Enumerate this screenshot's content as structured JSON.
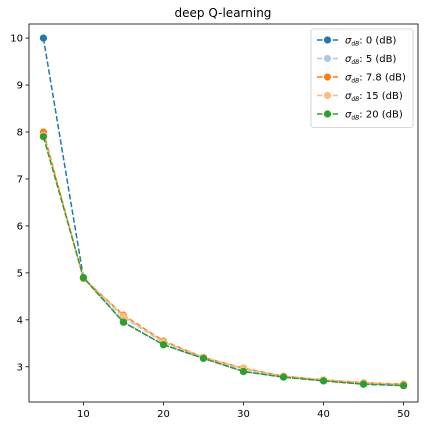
{
  "chart_data": {
    "type": "line",
    "title": "deep Q-learning",
    "xlabel": "",
    "ylabel": "",
    "xlim": [
      3.2,
      51.8
    ],
    "ylim": [
      2.25,
      10.3
    ],
    "xticks": [
      10,
      20,
      30,
      40,
      50
    ],
    "yticks": [
      3,
      4,
      5,
      6,
      7,
      8,
      9,
      10
    ],
    "grid": false,
    "legend_position": "top-right",
    "x": [
      5,
      10,
      15,
      20,
      25,
      30,
      35,
      40,
      45,
      50
    ],
    "series": [
      {
        "name": "0 (dB)",
        "symbol": "σ",
        "subscript": "dB",
        "color": "#1f77b4",
        "values": [
          10.0,
          4.9,
          3.95,
          3.47,
          3.18,
          2.9,
          2.78,
          2.7,
          2.63,
          2.6
        ]
      },
      {
        "name": "5 (dB)",
        "symbol": "σ",
        "subscript": "dB",
        "color": "#aec7e8",
        "values": [
          7.95,
          4.9,
          4.05,
          3.52,
          3.2,
          2.95,
          2.8,
          2.72,
          2.66,
          2.62
        ]
      },
      {
        "name": "7.8 (dB)",
        "symbol": "σ",
        "subscript": "dB",
        "color": "#ff7f0e",
        "values": [
          8.0,
          4.88,
          4.1,
          3.55,
          3.2,
          2.97,
          2.8,
          2.72,
          2.66,
          2.63
        ]
      },
      {
        "name": "15 (dB)",
        "symbol": "σ",
        "subscript": "dB",
        "color": "#ffbb78",
        "values": [
          7.93,
          4.9,
          4.08,
          3.53,
          3.2,
          2.96,
          2.8,
          2.72,
          2.66,
          2.62
        ]
      },
      {
        "name": "20 (dB)",
        "symbol": "σ",
        "subscript": "dB",
        "color": "#2ca02c",
        "values": [
          7.9,
          4.9,
          3.95,
          3.47,
          3.18,
          2.9,
          2.78,
          2.7,
          2.63,
          2.6
        ]
      }
    ]
  }
}
